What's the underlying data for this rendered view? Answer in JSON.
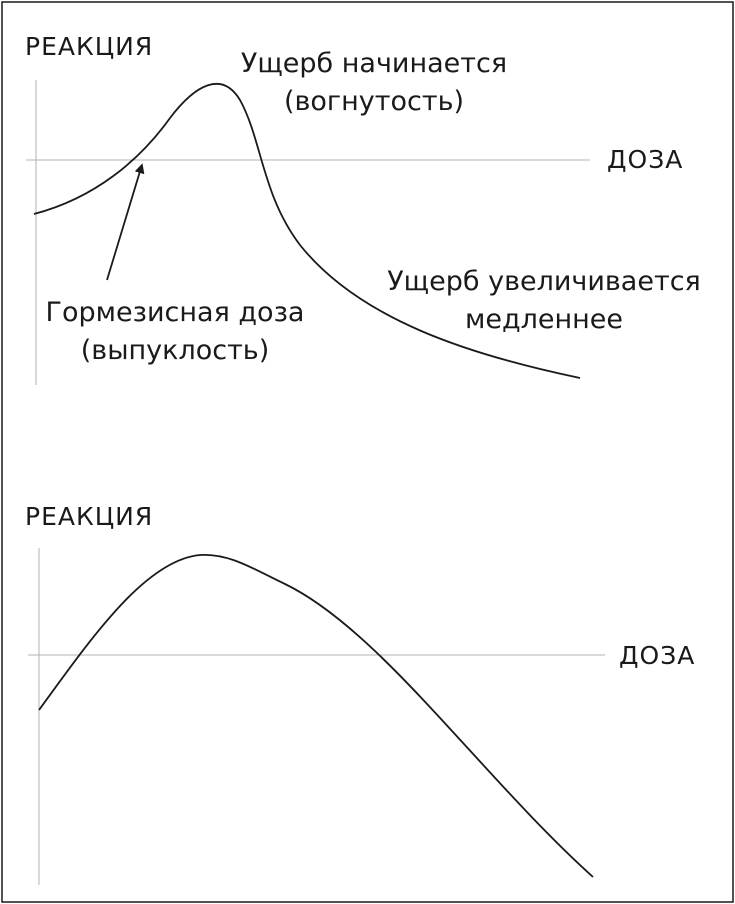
{
  "top_panel": {
    "y_axis_label": "РЕАКЦИЯ",
    "x_axis_label": "ДОЗА",
    "annotation_peak_line1": "Ущерб начинается",
    "annotation_peak_line2": "(вогнутость)",
    "annotation_hormesis_line1": "Гормезисная доза",
    "annotation_hormesis_line2": "(выпуклость)",
    "annotation_tail_line1": "Ущерб увеличивается",
    "annotation_tail_line2": "медленнее"
  },
  "bottom_panel": {
    "y_axis_label": "РЕАКЦИЯ",
    "x_axis_label": "ДОЗА"
  },
  "colors": {
    "curve": "#1a1a1a",
    "axis": "#b3b3b3",
    "border": "#1a1a1a"
  }
}
